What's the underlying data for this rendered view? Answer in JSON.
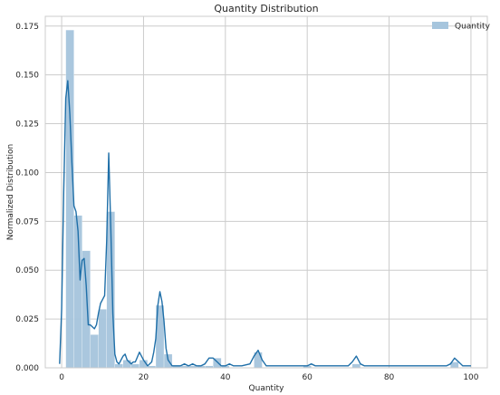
{
  "chart_data": {
    "type": "bar",
    "title": "Quantity Distribution",
    "xlabel": "Quantity",
    "ylabel": "Normalized Distribution",
    "xlim": [
      -4,
      104
    ],
    "ylim": [
      0,
      0.18
    ],
    "x_ticks": [
      0,
      20,
      40,
      60,
      80,
      100
    ],
    "y_ticks": [
      0.0,
      0.025,
      0.05,
      0.075,
      0.1,
      0.125,
      0.15,
      0.175
    ],
    "grid": true,
    "legend_position": "top-right",
    "bar_color": "#a6c5dd",
    "line_color": "#1f6fa8",
    "series": [
      {
        "name": "Quantity",
        "kind": "histogram",
        "bin_width": 2,
        "bins": [
          {
            "x0": 1,
            "value": 0.173
          },
          {
            "x0": 3,
            "value": 0.078
          },
          {
            "x0": 5,
            "value": 0.06
          },
          {
            "x0": 7,
            "value": 0.017
          },
          {
            "x0": 9,
            "value": 0.03
          },
          {
            "x0": 11,
            "value": 0.08
          },
          {
            "x0": 13,
            "value": 0.002
          },
          {
            "x0": 15,
            "value": 0.004
          },
          {
            "x0": 17,
            "value": 0.002
          },
          {
            "x0": 19,
            "value": 0.004
          },
          {
            "x0": 21,
            "value": 0.001
          },
          {
            "x0": 23,
            "value": 0.032
          },
          {
            "x0": 25,
            "value": 0.007
          },
          {
            "x0": 27,
            "value": 0.001
          },
          {
            "x0": 29,
            "value": 0.001
          },
          {
            "x0": 31,
            "value": 0.001
          },
          {
            "x0": 33,
            "value": 0.001
          },
          {
            "x0": 35,
            "value": 0.001
          },
          {
            "x0": 37,
            "value": 0.005
          },
          {
            "x0": 39,
            "value": 0.001
          },
          {
            "x0": 47,
            "value": 0.008
          },
          {
            "x0": 59,
            "value": 0.001
          },
          {
            "x0": 71,
            "value": 0.002
          },
          {
            "x0": 95,
            "value": 0.003
          }
        ]
      },
      {
        "name": "",
        "kind": "kde",
        "x": [
          -0.5,
          0,
          0.5,
          1,
          1.5,
          2,
          2.5,
          3,
          3.5,
          4,
          4.5,
          5,
          5.5,
          6,
          6.5,
          7,
          7.5,
          8,
          8.5,
          9,
          9.5,
          10,
          10.5,
          11,
          11.5,
          12,
          12.5,
          13,
          13.5,
          14,
          15,
          15.5,
          16,
          17,
          17.5,
          18,
          19,
          19.5,
          20,
          21,
          22,
          22.5,
          23,
          23.5,
          24,
          24.5,
          25,
          25.5,
          26,
          27,
          28,
          29,
          30,
          31,
          32,
          33,
          34,
          35,
          36,
          37,
          38,
          39,
          40,
          41,
          42,
          44,
          46,
          47,
          48,
          49,
          50,
          52,
          56,
          60,
          61,
          62,
          64,
          66,
          70,
          71,
          72,
          73,
          74,
          78,
          82,
          88,
          94,
          95,
          96,
          97,
          98,
          100
        ],
        "y": [
          0.002,
          0.03,
          0.09,
          0.138,
          0.147,
          0.13,
          0.105,
          0.083,
          0.08,
          0.07,
          0.045,
          0.055,
          0.056,
          0.042,
          0.022,
          0.022,
          0.021,
          0.02,
          0.022,
          0.028,
          0.033,
          0.035,
          0.037,
          0.065,
          0.11,
          0.072,
          0.028,
          0.007,
          0.003,
          0.002,
          0.006,
          0.007,
          0.004,
          0.002,
          0.003,
          0.003,
          0.008,
          0.006,
          0.004,
          0.001,
          0.003,
          0.008,
          0.015,
          0.032,
          0.039,
          0.034,
          0.024,
          0.01,
          0.004,
          0.001,
          0.001,
          0.001,
          0.002,
          0.001,
          0.002,
          0.001,
          0.001,
          0.002,
          0.005,
          0.005,
          0.003,
          0.001,
          0.001,
          0.002,
          0.001,
          0.001,
          0.002,
          0.006,
          0.009,
          0.004,
          0.001,
          0.001,
          0.001,
          0.001,
          0.002,
          0.001,
          0.001,
          0.001,
          0.001,
          0.003,
          0.006,
          0.002,
          0.001,
          0.001,
          0.001,
          0.001,
          0.001,
          0.002,
          0.005,
          0.003,
          0.001,
          0.001
        ]
      }
    ]
  }
}
